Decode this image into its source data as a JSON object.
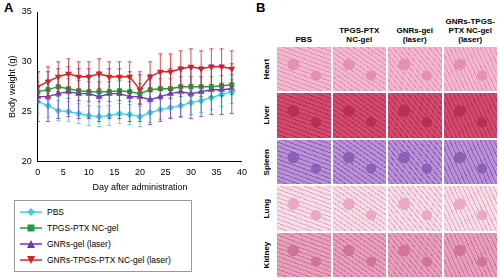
{
  "panel_labels": [
    "A",
    "B"
  ],
  "chart_data": {
    "type": "line",
    "x_label": "Day after administration",
    "y_label": "Body weight (g)",
    "xlim": [
      0,
      40
    ],
    "xticks": [
      0,
      5,
      10,
      15,
      20,
      25,
      30,
      35,
      40
    ],
    "ylim": [
      20,
      35
    ],
    "yticks": [
      20,
      25,
      30,
      35
    ],
    "grid": false,
    "legend": "bottom",
    "x": [
      0,
      2,
      4,
      6,
      8,
      10,
      12,
      14,
      16,
      18,
      20,
      22,
      24,
      26,
      28,
      30,
      32,
      34,
      36,
      38
    ],
    "series": [
      {
        "name": "PBS",
        "color": "#3ccfe0",
        "marker": "diamond",
        "values": [
          26,
          25.6,
          25.1,
          25,
          24.8,
          24.6,
          24.5,
          24.6,
          24.8,
          24.7,
          24.5,
          24.9,
          25.2,
          25.4,
          25.6,
          25.9,
          26.1,
          26.4,
          26.7,
          27
        ],
        "errors": [
          1.2,
          1.2,
          1.0,
          1.0,
          1.0,
          1.0,
          1.0,
          1.0,
          1.0,
          1.0,
          1.0,
          1.0,
          1.0,
          1.0,
          1.2,
          1.2,
          1.2,
          1.2,
          1.2,
          1.2
        ]
      },
      {
        "name": "TPGS-PTX NC-gel",
        "color": "#1f9e3a",
        "marker": "square",
        "values": [
          27,
          27.2,
          27.5,
          27.3,
          27.1,
          27,
          27,
          27,
          27.1,
          27,
          26.8,
          27.2,
          27.3,
          27.3,
          27.5,
          27.5,
          27.5,
          27.5,
          27.6,
          27.7
        ],
        "errors": [
          1.0,
          1.0,
          1.0,
          1.0,
          1.0,
          1.0,
          1.0,
          1.0,
          1.0,
          1.0,
          1.0,
          1.0,
          1.0,
          1.0,
          1.0,
          1.0,
          1.0,
          1.0,
          1.0,
          1.0
        ]
      },
      {
        "name": "GNRs-gel (laser)",
        "color": "#7b2fbf",
        "marker": "triangle",
        "values": [
          26.5,
          26.5,
          26.8,
          27,
          26.8,
          26.8,
          26.5,
          26.8,
          26.8,
          26.5,
          26.5,
          26.2,
          26.5,
          26.8,
          27,
          26.8,
          27,
          27.2,
          27.2,
          27.3
        ],
        "errors": [
          2.5,
          2.5,
          2.5,
          2.5,
          2.5,
          2.5,
          2.5,
          2.5,
          2.5,
          2.5,
          2.5,
          2.5,
          2.5,
          2.5,
          2.5,
          2.5,
          2.5,
          2.5,
          2.5,
          2.5
        ]
      },
      {
        "name": "GNRs-TPGS-PTX NC-gel (laser)",
        "color": "#e0201b",
        "marker": "triangle-down",
        "values": [
          27.5,
          28,
          28.5,
          28.8,
          28.5,
          28.5,
          28.8,
          28.5,
          28.5,
          28.5,
          27.2,
          28.5,
          29,
          29,
          29.3,
          29.5,
          29.3,
          29.5,
          29.5,
          29.3
        ],
        "errors": [
          1.5,
          1.5,
          1.5,
          1.5,
          1.5,
          1.5,
          1.5,
          1.5,
          1.5,
          1.5,
          1.5,
          1.5,
          1.8,
          1.8,
          1.8,
          1.8,
          1.8,
          1.8,
          1.8,
          1.8
        ]
      }
    ]
  },
  "histology": {
    "columns": [
      "PBS",
      "TPGS-PTX NC-gel",
      "GNRs-gel (laser)",
      "GNRs-TPGS-PTX NC-gel (laser)"
    ],
    "rows": [
      "Heart",
      "Liver",
      "Spleen",
      "Lung",
      "Kidney"
    ]
  }
}
